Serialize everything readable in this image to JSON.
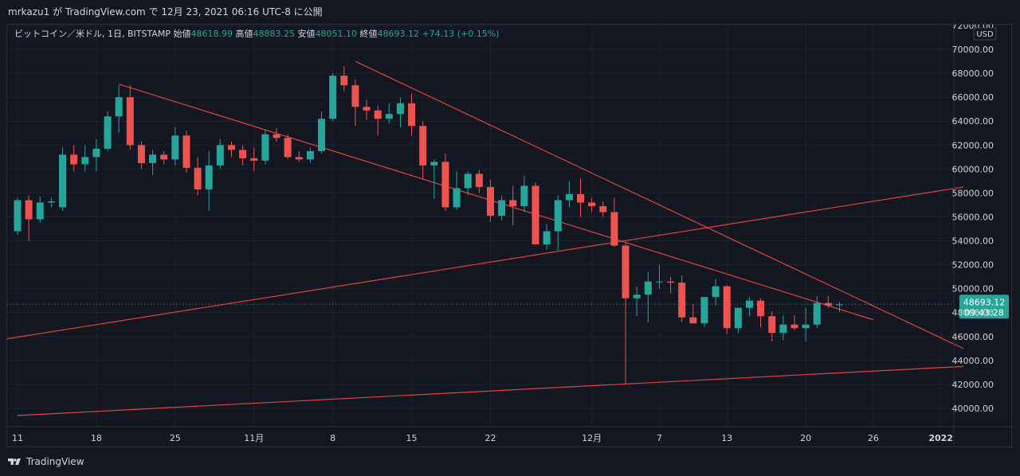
{
  "header": {
    "publisher": "mrkazu1 が TradingView.com で 12月 23, 2021 06:16 UTC-8 に公開"
  },
  "legend": {
    "symbol": "ビットコイン／米ドル, 1日, BITSTAMP",
    "open_label": "始値",
    "open": "48618.99",
    "high_label": "高値",
    "high": "48883.25",
    "low_label": "安値",
    "low": "48051.10",
    "close_label": "終値",
    "close": "48693.12",
    "change": "+74.13 (+0.15%)"
  },
  "footer": {
    "brand": "TradingView",
    "logo_icon": "tradingview-logo-icon"
  },
  "colors": {
    "up": "#26a69a",
    "down": "#ef5350",
    "trendline": "#e0423e",
    "background": "#131722",
    "grid": "#1e222d"
  },
  "chart_data": {
    "type": "candlestick",
    "currency": "USD",
    "y_ticks": [
      40000,
      42000,
      44000,
      46000,
      48000,
      50000,
      52000,
      54000,
      56000,
      58000,
      60000,
      62000,
      64000,
      66000,
      68000,
      70000,
      72000
    ],
    "y_tick_labels": [
      "40000.00",
      "42000.00",
      "44000.00",
      "46000.00",
      "48000.00",
      "50000.00",
      "52000.00",
      "54000.00",
      "56000.00",
      "58000.00",
      "60000.00",
      "62000.00",
      "64000.00",
      "66000.00",
      "68000.00",
      "70000.00",
      "72000.00"
    ],
    "ylim": [
      39000,
      72000
    ],
    "x_ticks": [
      {
        "label": "11",
        "index": 0
      },
      {
        "label": "18",
        "index": 7
      },
      {
        "label": "25",
        "index": 14
      },
      {
        "label": "11月",
        "index": 21
      },
      {
        "label": "8",
        "index": 28
      },
      {
        "label": "15",
        "index": 35
      },
      {
        "label": "22",
        "index": 42
      },
      {
        "label": "12月",
        "index": 51
      },
      {
        "label": "7",
        "index": 57
      },
      {
        "label": "13",
        "index": 63
      },
      {
        "label": "20",
        "index": 70
      },
      {
        "label": "26",
        "index": 76
      },
      {
        "label": "2022",
        "index": 82
      }
    ],
    "last_price": {
      "price": "48693.12",
      "timer": "09:43:28",
      "value": 48693.12
    },
    "candles": [
      [
        54800,
        57600,
        54500,
        57400
      ],
      [
        57400,
        57800,
        54000,
        55800
      ],
      [
        55800,
        57700,
        55500,
        57200
      ],
      [
        57200,
        57600,
        56800,
        57300
      ],
      [
        56800,
        61800,
        56500,
        61200
      ],
      [
        61200,
        62000,
        59800,
        60400
      ],
      [
        60400,
        62000,
        59800,
        61000
      ],
      [
        61000,
        62500,
        59800,
        61700
      ],
      [
        61700,
        64800,
        61500,
        64400
      ],
      [
        64400,
        67000,
        63000,
        66000
      ],
      [
        66000,
        67000,
        61600,
        62000
      ],
      [
        62000,
        62300,
        60000,
        60500
      ],
      [
        60500,
        61600,
        59500,
        61200
      ],
      [
        61200,
        61500,
        60400,
        60800
      ],
      [
        60800,
        63500,
        60300,
        62800
      ],
      [
        62800,
        63200,
        59700,
        60100
      ],
      [
        60100,
        61000,
        57800,
        58300
      ],
      [
        58300,
        61500,
        56500,
        60300
      ],
      [
        60300,
        62500,
        60000,
        62000
      ],
      [
        62000,
        62300,
        61000,
        61600
      ],
      [
        61600,
        62000,
        60300,
        60900
      ],
      [
        60900,
        61800,
        59800,
        60700
      ],
      [
        60700,
        63300,
        60400,
        62900
      ],
      [
        62900,
        63400,
        62300,
        62600
      ],
      [
        62600,
        62900,
        60800,
        61000
      ],
      [
        61000,
        61500,
        60600,
        60800
      ],
      [
        60800,
        61800,
        60500,
        61500
      ],
      [
        61500,
        64800,
        61300,
        64200
      ],
      [
        64200,
        68000,
        64000,
        67800
      ],
      [
        67800,
        68600,
        66500,
        67000
      ],
      [
        67000,
        67500,
        63600,
        65200
      ],
      [
        65200,
        65800,
        64100,
        64900
      ],
      [
        64900,
        65300,
        62800,
        64200
      ],
      [
        64200,
        65500,
        63800,
        64600
      ],
      [
        64600,
        66000,
        63500,
        65500
      ],
      [
        65500,
        66300,
        62800,
        63600
      ],
      [
        63600,
        64000,
        59200,
        60300
      ],
      [
        60300,
        60800,
        57500,
        60600
      ],
      [
        60600,
        61300,
        56500,
        56800
      ],
      [
        56800,
        59800,
        56600,
        58400
      ],
      [
        58400,
        59800,
        57800,
        59600
      ],
      [
        59600,
        59900,
        58000,
        58500
      ],
      [
        58500,
        59100,
        55600,
        56100
      ],
      [
        56100,
        57800,
        55700,
        57400
      ],
      [
        57400,
        58600,
        55300,
        56900
      ],
      [
        56900,
        59400,
        56400,
        58600
      ],
      [
        58600,
        58900,
        53700,
        53700
      ],
      [
        53700,
        55400,
        53300,
        54800
      ],
      [
        54800,
        57800,
        53200,
        57400
      ],
      [
        57400,
        59000,
        56800,
        57900
      ],
      [
        57900,
        59200,
        56000,
        57200
      ],
      [
        57200,
        57600,
        56400,
        56900
      ],
      [
        56900,
        57300,
        56000,
        56400
      ],
      [
        56400,
        57600,
        53500,
        53600
      ],
      [
        53600,
        53800,
        42000,
        49200
      ],
      [
        49200,
        50200,
        47700,
        49500
      ],
      [
        49500,
        51400,
        47200,
        50600
      ],
      [
        50600,
        52000,
        50000,
        50600
      ],
      [
        50600,
        51000,
        49600,
        50500
      ],
      [
        50500,
        51100,
        47200,
        47600
      ],
      [
        47600,
        48700,
        47100,
        47100
      ],
      [
        47100,
        49300,
        46800,
        49300
      ],
      [
        49300,
        50800,
        48600,
        50200
      ],
      [
        50200,
        50300,
        46200,
        46700
      ],
      [
        46700,
        48400,
        46300,
        48400
      ],
      [
        48400,
        49300,
        47700,
        49000
      ],
      [
        49000,
        49200,
        46800,
        47700
      ],
      [
        47700,
        48100,
        45600,
        46300
      ],
      [
        46300,
        47800,
        45700,
        47000
      ],
      [
        47000,
        47800,
        46500,
        46700
      ],
      [
        46700,
        48400,
        45600,
        47000
      ],
      [
        47000,
        49400,
        46700,
        48800
      ],
      [
        48800,
        49400,
        48400,
        48600
      ],
      [
        48620,
        48880,
        48050,
        48690
      ]
    ],
    "trendlines": [
      {
        "from": [
          9,
          67100
        ],
        "to": [
          76,
          47400
        ]
      },
      {
        "from": [
          30,
          69000
        ],
        "to": [
          84,
          45000
        ]
      },
      {
        "from": [
          -1,
          45800
        ],
        "to": [
          84,
          58500
        ]
      },
      {
        "from": [
          0,
          39400
        ],
        "to": [
          84,
          43500
        ]
      }
    ],
    "grid": true
  }
}
